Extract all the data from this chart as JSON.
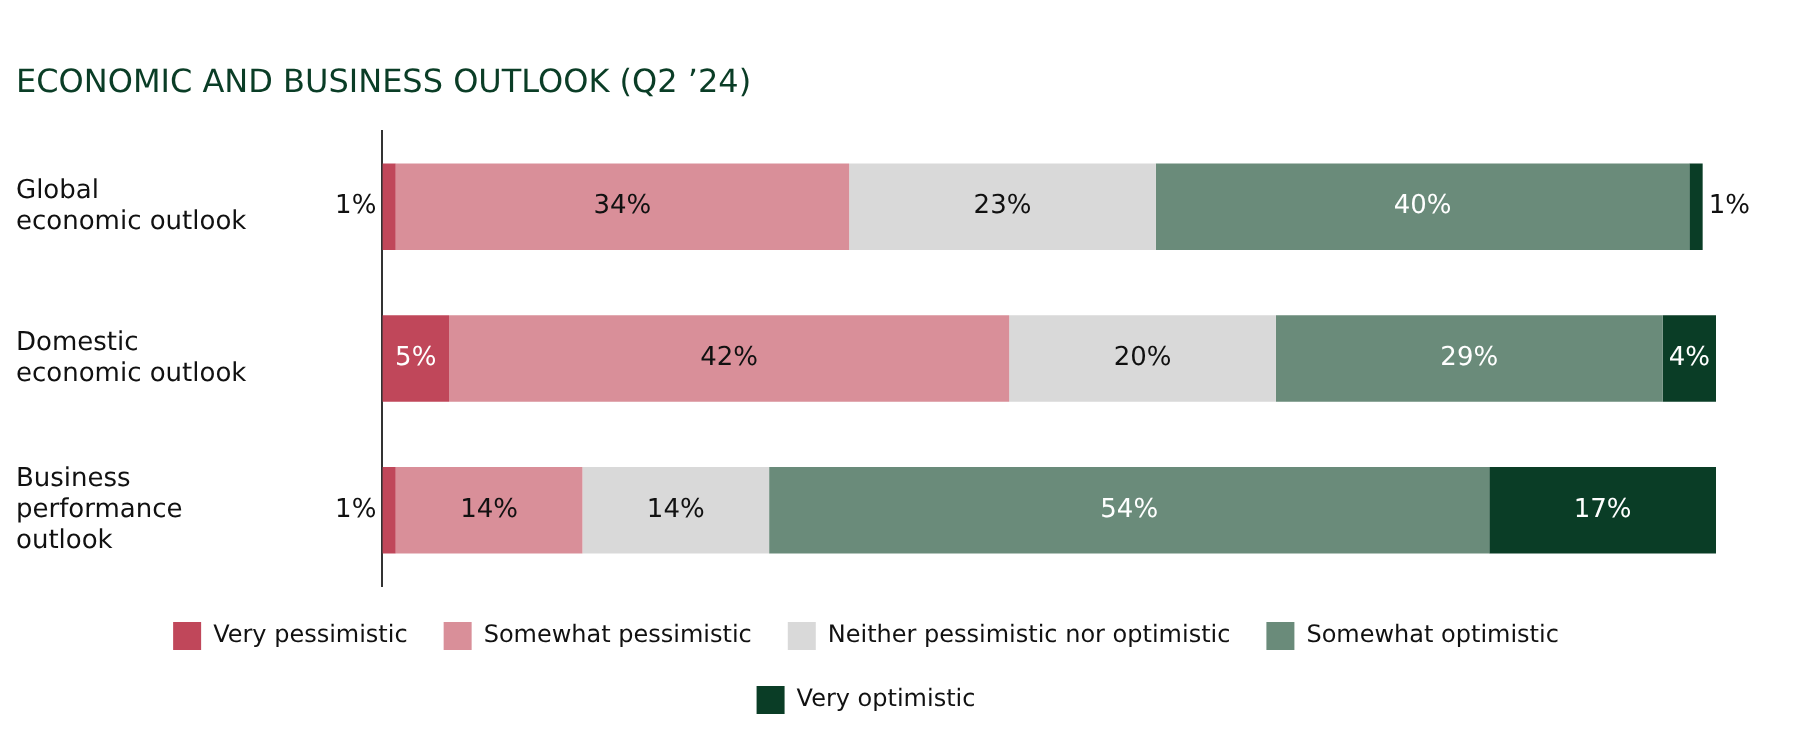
{
  "chart_data": {
    "type": "bar",
    "orientation": "horizontal",
    "stacked": true,
    "title": "ECONOMIC AND BUSINESS OUTLOOK (Q2 ’24)",
    "categories": [
      "Global\neconomic outlook",
      "Domestic\neconomic outlook",
      "Business\nperformance\noutlook"
    ],
    "series": [
      {
        "name": "Very pessimistic",
        "color": "#c0475a",
        "values": [
          1,
          5,
          1
        ],
        "value_labels": [
          "1%",
          "5%",
          "1%"
        ]
      },
      {
        "name": "Somewhat pessimistic",
        "color": "#d98f99",
        "values": [
          34,
          42,
          14
        ],
        "value_labels": [
          "34%",
          "42%",
          "14%"
        ]
      },
      {
        "name": "Neither pessimistic nor optimistic",
        "color": "#d9d9d9",
        "values": [
          23,
          20,
          14
        ],
        "value_labels": [
          "23%",
          "20%",
          "14%"
        ]
      },
      {
        "name": "Somewhat optimistic",
        "color": "#6a8b7a",
        "values": [
          40,
          29,
          54
        ],
        "value_labels": [
          "40%",
          "29%",
          "54%"
        ]
      },
      {
        "name": "Very optimistic",
        "color": "#0a3d26",
        "values": [
          1,
          4,
          17
        ],
        "value_labels": [
          "1%",
          "4%",
          "17%"
        ]
      }
    ],
    "legend": "bottom",
    "grid": false
  }
}
